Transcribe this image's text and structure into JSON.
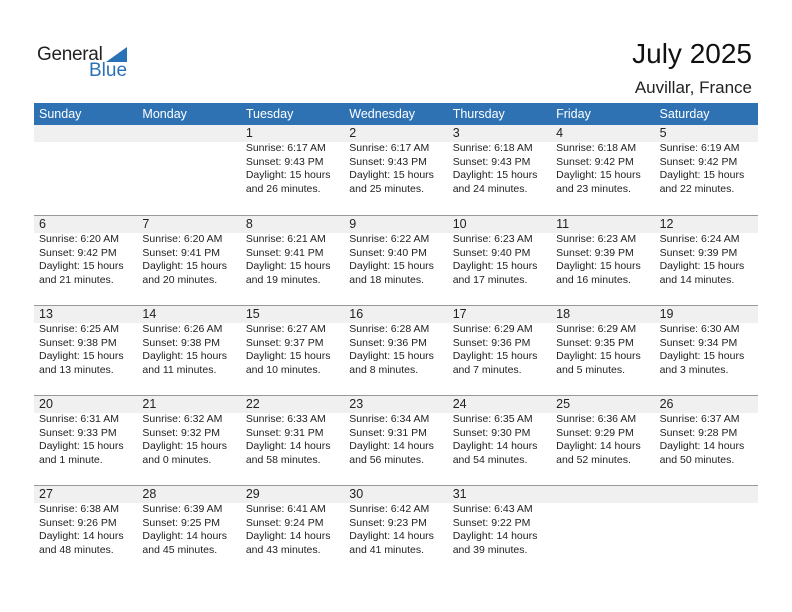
{
  "logo": {
    "text1": "General",
    "text2": "Blue"
  },
  "title": "July 2025",
  "location": "Auvillar, France",
  "colors": {
    "header": "#2e72b4",
    "date_bar": "#f0f0f0",
    "brand": "#2a72b6"
  },
  "weekdays": [
    "Sunday",
    "Monday",
    "Tuesday",
    "Wednesday",
    "Thursday",
    "Friday",
    "Saturday"
  ],
  "weeks": [
    [
      null,
      null,
      {
        "day": "1",
        "sunrise": "Sunrise: 6:17 AM",
        "sunset": "Sunset: 9:43 PM",
        "daylight": "Daylight: 15 hours",
        "minutes": "and 26 minutes."
      },
      {
        "day": "2",
        "sunrise": "Sunrise: 6:17 AM",
        "sunset": "Sunset: 9:43 PM",
        "daylight": "Daylight: 15 hours",
        "minutes": "and 25 minutes."
      },
      {
        "day": "3",
        "sunrise": "Sunrise: 6:18 AM",
        "sunset": "Sunset: 9:43 PM",
        "daylight": "Daylight: 15 hours",
        "minutes": "and 24 minutes."
      },
      {
        "day": "4",
        "sunrise": "Sunrise: 6:18 AM",
        "sunset": "Sunset: 9:42 PM",
        "daylight": "Daylight: 15 hours",
        "minutes": "and 23 minutes."
      },
      {
        "day": "5",
        "sunrise": "Sunrise: 6:19 AM",
        "sunset": "Sunset: 9:42 PM",
        "daylight": "Daylight: 15 hours",
        "minutes": "and 22 minutes."
      }
    ],
    [
      {
        "day": "6",
        "sunrise": "Sunrise: 6:20 AM",
        "sunset": "Sunset: 9:42 PM",
        "daylight": "Daylight: 15 hours",
        "minutes": "and 21 minutes."
      },
      {
        "day": "7",
        "sunrise": "Sunrise: 6:20 AM",
        "sunset": "Sunset: 9:41 PM",
        "daylight": "Daylight: 15 hours",
        "minutes": "and 20 minutes."
      },
      {
        "day": "8",
        "sunrise": "Sunrise: 6:21 AM",
        "sunset": "Sunset: 9:41 PM",
        "daylight": "Daylight: 15 hours",
        "minutes": "and 19 minutes."
      },
      {
        "day": "9",
        "sunrise": "Sunrise: 6:22 AM",
        "sunset": "Sunset: 9:40 PM",
        "daylight": "Daylight: 15 hours",
        "minutes": "and 18 minutes."
      },
      {
        "day": "10",
        "sunrise": "Sunrise: 6:23 AM",
        "sunset": "Sunset: 9:40 PM",
        "daylight": "Daylight: 15 hours",
        "minutes": "and 17 minutes."
      },
      {
        "day": "11",
        "sunrise": "Sunrise: 6:23 AM",
        "sunset": "Sunset: 9:39 PM",
        "daylight": "Daylight: 15 hours",
        "minutes": "and 16 minutes."
      },
      {
        "day": "12",
        "sunrise": "Sunrise: 6:24 AM",
        "sunset": "Sunset: 9:39 PM",
        "daylight": "Daylight: 15 hours",
        "minutes": "and 14 minutes."
      }
    ],
    [
      {
        "day": "13",
        "sunrise": "Sunrise: 6:25 AM",
        "sunset": "Sunset: 9:38 PM",
        "daylight": "Daylight: 15 hours",
        "minutes": "and 13 minutes."
      },
      {
        "day": "14",
        "sunrise": "Sunrise: 6:26 AM",
        "sunset": "Sunset: 9:38 PM",
        "daylight": "Daylight: 15 hours",
        "minutes": "and 11 minutes."
      },
      {
        "day": "15",
        "sunrise": "Sunrise: 6:27 AM",
        "sunset": "Sunset: 9:37 PM",
        "daylight": "Daylight: 15 hours",
        "minutes": "and 10 minutes."
      },
      {
        "day": "16",
        "sunrise": "Sunrise: 6:28 AM",
        "sunset": "Sunset: 9:36 PM",
        "daylight": "Daylight: 15 hours",
        "minutes": "and 8 minutes."
      },
      {
        "day": "17",
        "sunrise": "Sunrise: 6:29 AM",
        "sunset": "Sunset: 9:36 PM",
        "daylight": "Daylight: 15 hours",
        "minutes": "and 7 minutes."
      },
      {
        "day": "18",
        "sunrise": "Sunrise: 6:29 AM",
        "sunset": "Sunset: 9:35 PM",
        "daylight": "Daylight: 15 hours",
        "minutes": "and 5 minutes."
      },
      {
        "day": "19",
        "sunrise": "Sunrise: 6:30 AM",
        "sunset": "Sunset: 9:34 PM",
        "daylight": "Daylight: 15 hours",
        "minutes": "and 3 minutes."
      }
    ],
    [
      {
        "day": "20",
        "sunrise": "Sunrise: 6:31 AM",
        "sunset": "Sunset: 9:33 PM",
        "daylight": "Daylight: 15 hours",
        "minutes": "and 1 minute."
      },
      {
        "day": "21",
        "sunrise": "Sunrise: 6:32 AM",
        "sunset": "Sunset: 9:32 PM",
        "daylight": "Daylight: 15 hours",
        "minutes": "and 0 minutes."
      },
      {
        "day": "22",
        "sunrise": "Sunrise: 6:33 AM",
        "sunset": "Sunset: 9:31 PM",
        "daylight": "Daylight: 14 hours",
        "minutes": "and 58 minutes."
      },
      {
        "day": "23",
        "sunrise": "Sunrise: 6:34 AM",
        "sunset": "Sunset: 9:31 PM",
        "daylight": "Daylight: 14 hours",
        "minutes": "and 56 minutes."
      },
      {
        "day": "24",
        "sunrise": "Sunrise: 6:35 AM",
        "sunset": "Sunset: 9:30 PM",
        "daylight": "Daylight: 14 hours",
        "minutes": "and 54 minutes."
      },
      {
        "day": "25",
        "sunrise": "Sunrise: 6:36 AM",
        "sunset": "Sunset: 9:29 PM",
        "daylight": "Daylight: 14 hours",
        "minutes": "and 52 minutes."
      },
      {
        "day": "26",
        "sunrise": "Sunrise: 6:37 AM",
        "sunset": "Sunset: 9:28 PM",
        "daylight": "Daylight: 14 hours",
        "minutes": "and 50 minutes."
      }
    ],
    [
      {
        "day": "27",
        "sunrise": "Sunrise: 6:38 AM",
        "sunset": "Sunset: 9:26 PM",
        "daylight": "Daylight: 14 hours",
        "minutes": "and 48 minutes."
      },
      {
        "day": "28",
        "sunrise": "Sunrise: 6:39 AM",
        "sunset": "Sunset: 9:25 PM",
        "daylight": "Daylight: 14 hours",
        "minutes": "and 45 minutes."
      },
      {
        "day": "29",
        "sunrise": "Sunrise: 6:41 AM",
        "sunset": "Sunset: 9:24 PM",
        "daylight": "Daylight: 14 hours",
        "minutes": "and 43 minutes."
      },
      {
        "day": "30",
        "sunrise": "Sunrise: 6:42 AM",
        "sunset": "Sunset: 9:23 PM",
        "daylight": "Daylight: 14 hours",
        "minutes": "and 41 minutes."
      },
      {
        "day": "31",
        "sunrise": "Sunrise: 6:43 AM",
        "sunset": "Sunset: 9:22 PM",
        "daylight": "Daylight: 14 hours",
        "minutes": "and 39 minutes."
      },
      null,
      null
    ]
  ]
}
